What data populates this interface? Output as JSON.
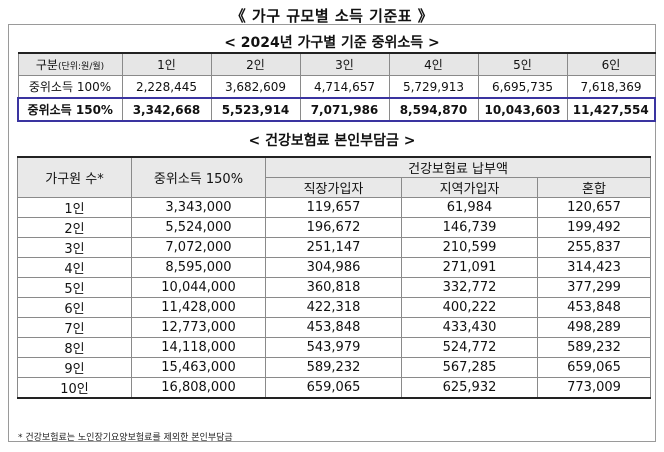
{
  "title": "《 가구 규모별 소득 기준표 》",
  "section1": {
    "subtitle": "< 2024년 가구별 기준 중위소득 >",
    "header": {
      "label_main": "구분",
      "label_unit": "(단위:원/월)",
      "columns": [
        "1인",
        "2인",
        "3인",
        "4인",
        "5인",
        "6인"
      ]
    },
    "rows": [
      {
        "label": "중위소득 100%",
        "values": [
          "2,228,445",
          "3,682,609",
          "4,714,657",
          "5,729,913",
          "6,695,735",
          "7,618,369"
        ]
      },
      {
        "label": "중위소득 150%",
        "values": [
          "3,342,668",
          "5,523,914",
          "7,071,986",
          "8,594,870",
          "10,043,603",
          "11,427,554"
        ]
      }
    ]
  },
  "section2": {
    "subtitle": "< 건강보험료 본인부담금 >",
    "header": {
      "col_household": "가구원 수*",
      "col_income": "중위소득 150%",
      "col_group": "건강보험료 납부액",
      "sub_columns": [
        "직장가입자",
        "지역가입자",
        "혼합"
      ]
    },
    "rows": [
      [
        "1인",
        "3,343,000",
        "119,657",
        "61,984",
        "120,657"
      ],
      [
        "2인",
        "5,524,000",
        "196,672",
        "146,739",
        "199,492"
      ],
      [
        "3인",
        "7,072,000",
        "251,147",
        "210,599",
        "255,837"
      ],
      [
        "4인",
        "8,595,000",
        "304,986",
        "271,091",
        "314,423"
      ],
      [
        "5인",
        "10,044,000",
        "360,818",
        "332,772",
        "377,299"
      ],
      [
        "6인",
        "11,428,000",
        "422,318",
        "400,222",
        "453,848"
      ],
      [
        "7인",
        "12,773,000",
        "453,848",
        "433,430",
        "498,289"
      ],
      [
        "8인",
        "14,118,000",
        "543,979",
        "524,772",
        "589,232"
      ],
      [
        "9인",
        "15,463,000",
        "589,232",
        "567,285",
        "659,065"
      ],
      [
        "10인",
        "16,808,000",
        "659,065",
        "625,932",
        "773,009"
      ]
    ]
  },
  "footnote": "* 건강보험료는 노인장기요양보험료를 제외한 본인부담금"
}
